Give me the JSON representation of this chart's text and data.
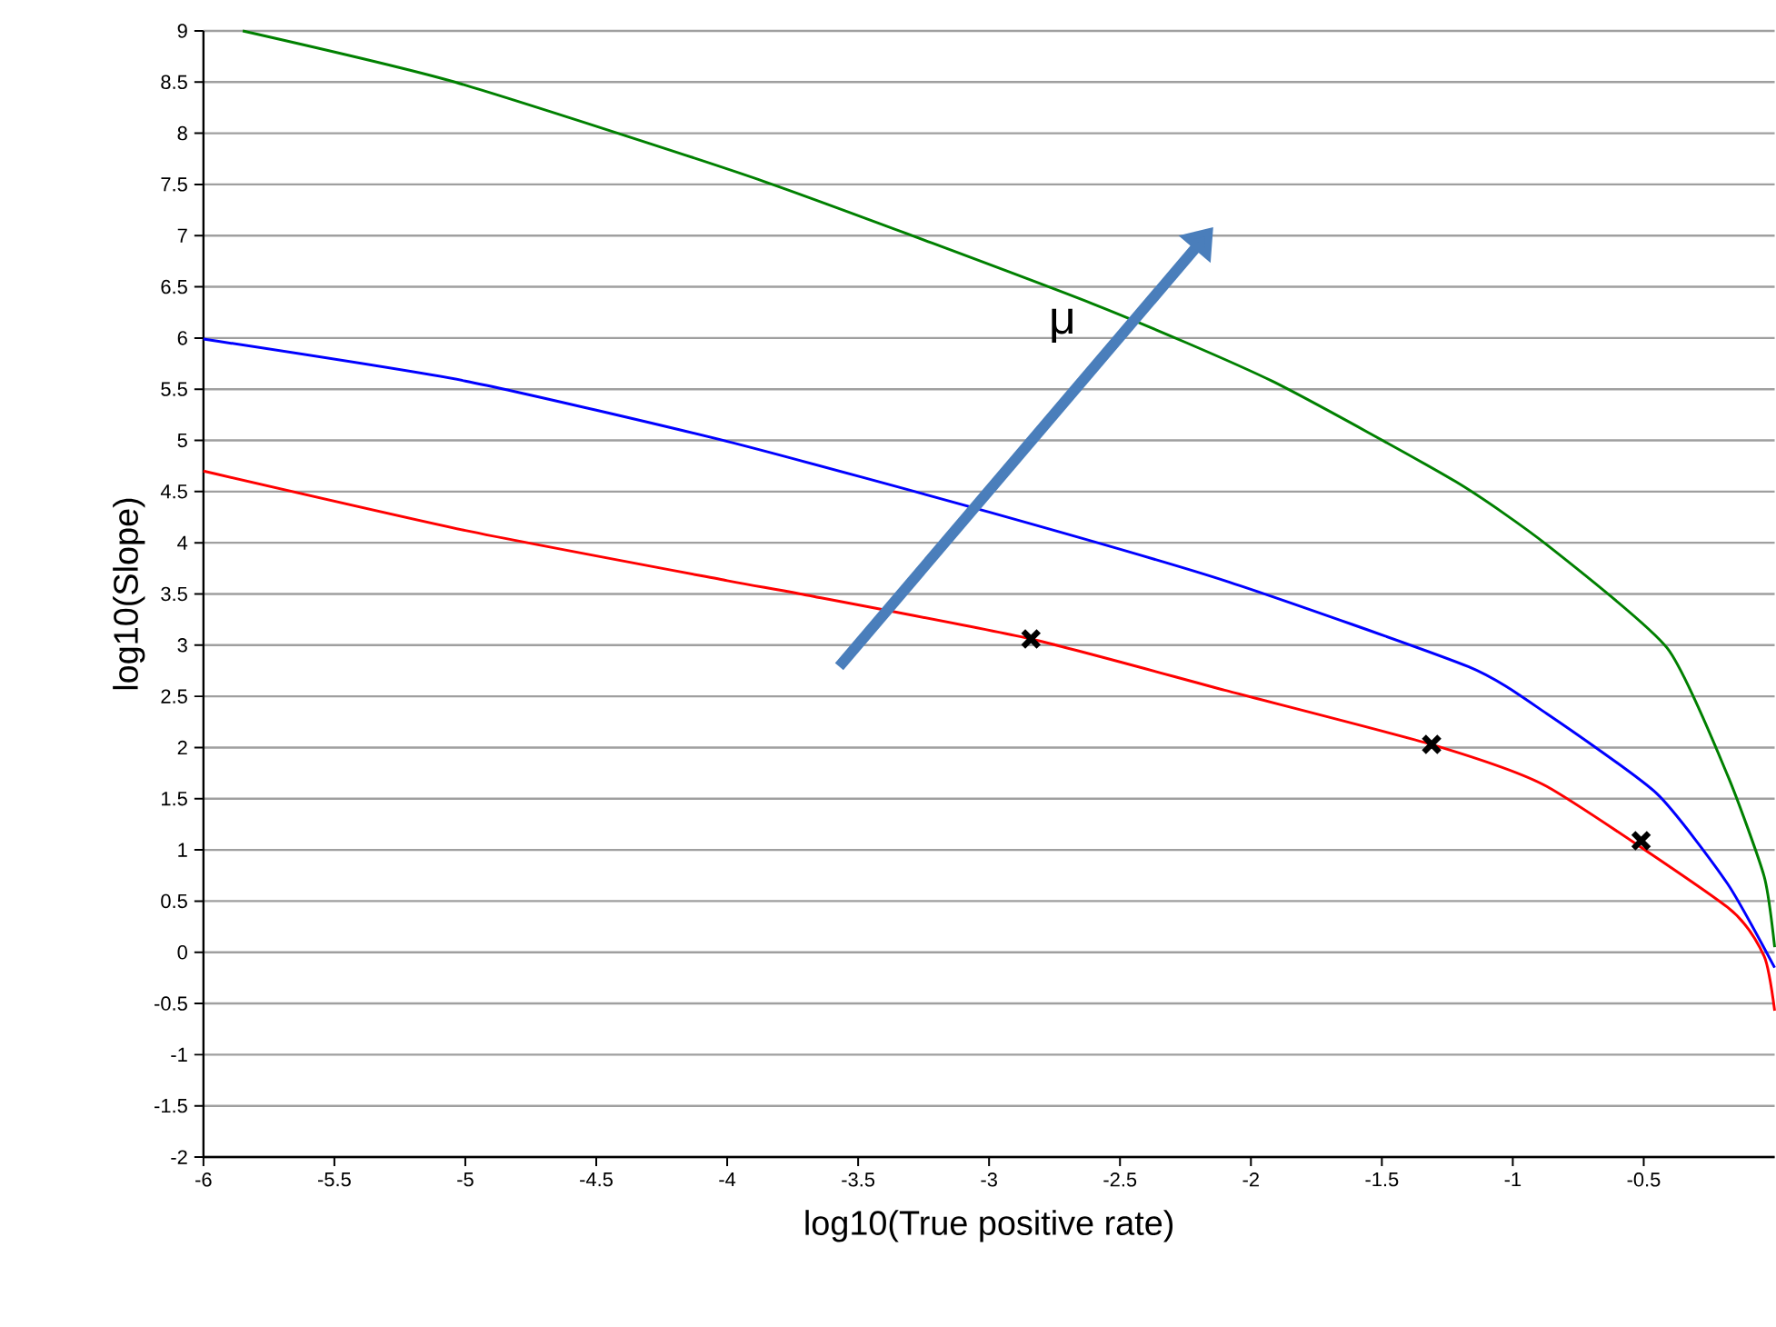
{
  "chart_data": {
    "type": "line",
    "xlabel": "log10(True positive rate)",
    "ylabel": "log10(Slope)",
    "annotations": [
      "μ"
    ],
    "xlim": [
      -6,
      0
    ],
    "ylim": [
      -2,
      9
    ],
    "xticks": [
      -6,
      -5.5,
      -5,
      -4.5,
      -4,
      -3.5,
      -3,
      -2.5,
      -2,
      -1.5,
      -1,
      -0.5
    ],
    "yticks": [
      -2,
      -1.5,
      -1,
      -0.5,
      0,
      0.5,
      1,
      1.5,
      2,
      2.5,
      3,
      3.5,
      4,
      4.5,
      5,
      5.5,
      6,
      6.5,
      7,
      7.5,
      8,
      8.5,
      9
    ],
    "grid": "y",
    "marker": "none",
    "line_style": "solid",
    "series": [
      {
        "color": "#ff0000",
        "x": [
          -6,
          -5,
          -4,
          -3.72,
          -2.84,
          -2.1,
          -1.31,
          -0.87,
          -0.18,
          -0.04,
          0
        ],
        "values": [
          4.7,
          4.12,
          3.63,
          3.5,
          3.06,
          2.56,
          2.03,
          1.62,
          0.44,
          -0.04,
          -0.57
        ]
      },
      {
        "color": "#0000ff",
        "x": [
          -6,
          -5,
          -4,
          -3,
          -2.1,
          -1.17,
          -0.87,
          -0.45,
          -0.18,
          0
        ],
        "values": [
          5.99,
          5.58,
          4.99,
          4.3,
          3.63,
          2.79,
          2.33,
          1.55,
          0.67,
          -0.15
        ]
      },
      {
        "color": "#008000",
        "x": [
          -5.85,
          -5.04,
          -3.86,
          -2.61,
          -1.92,
          -1.22,
          -0.87,
          -0.41,
          -0.18,
          -0.04,
          0
        ],
        "values": [
          9,
          8.5,
          7.53,
          6.34,
          5.58,
          4.6,
          3.98,
          2.97,
          1.73,
          0.74,
          0.05
        ]
      },
      {
        "type": "scatter",
        "marker": "cross",
        "color": "#000000",
        "x": [
          -2.84,
          -1.31,
          -0.51
        ],
        "values": [
          3.06,
          2.03,
          1.09
        ]
      }
    ]
  }
}
